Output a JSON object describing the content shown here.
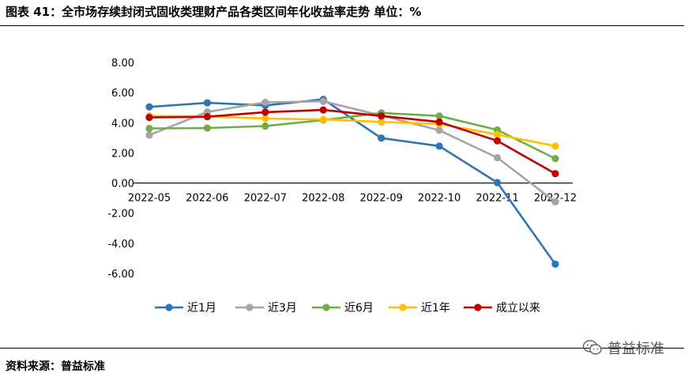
{
  "header": {
    "title": "图表 41：全市场存续封闭式固收类理财产品各类区间年化收益率走势    单位：%"
  },
  "footer": {
    "source": "资料来源：普益标准",
    "watermark": "普益标准"
  },
  "chart_data": {
    "type": "line",
    "x": [
      "2022-05",
      "2022-06",
      "2022-07",
      "2022-08",
      "2022-09",
      "2022-10",
      "2022-11",
      "2022-12"
    ],
    "y_ticks": [
      "8.00",
      "6.00",
      "4.00",
      "2.00",
      "0.00",
      "-2.00",
      "-4.00",
      "-6.00"
    ],
    "ylim": [
      -6,
      8
    ],
    "grid": false,
    "legend_position": "bottom",
    "series": [
      {
        "name": "近1月",
        "color": "#2e75b6",
        "values": [
          5.05,
          5.32,
          5.15,
          5.55,
          2.98,
          2.45,
          0.03,
          -5.38
        ]
      },
      {
        "name": "近3月",
        "color": "#a5a5a5",
        "values": [
          3.18,
          4.72,
          5.35,
          5.42,
          4.48,
          3.5,
          1.68,
          -1.25
        ]
      },
      {
        "name": "近6月",
        "color": "#70ad47",
        "values": [
          3.62,
          3.65,
          3.78,
          4.18,
          4.65,
          4.45,
          3.52,
          1.62
        ]
      },
      {
        "name": "近1年",
        "color": "#ffc000",
        "values": [
          4.45,
          4.42,
          4.28,
          4.22,
          4.05,
          3.92,
          3.22,
          2.45
        ]
      },
      {
        "name": "成立以来",
        "color": "#c00000",
        "values": [
          4.35,
          4.4,
          4.7,
          4.85,
          4.45,
          4.05,
          2.8,
          0.62
        ]
      }
    ]
  }
}
